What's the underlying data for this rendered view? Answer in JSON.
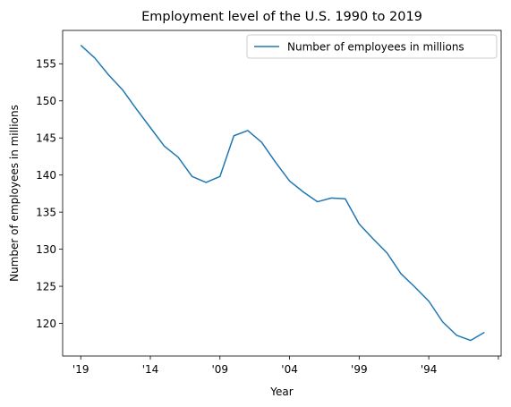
{
  "chart_data": {
    "type": "line",
    "title": "Employment level of the U.S. 1990 to 2019",
    "xlabel": "Year",
    "ylabel": "Number of employees in millions",
    "x": [
      2019,
      2018,
      2017,
      2016,
      2015,
      2014,
      2013,
      2012,
      2011,
      2010,
      2009,
      2008,
      2007,
      2006,
      2005,
      2004,
      2003,
      2002,
      2001,
      2000,
      1999,
      1998,
      1997,
      1996,
      1995,
      1994,
      1993,
      1992,
      1991,
      1990
    ],
    "x_tick_values": [
      2019,
      2014,
      2009,
      2004,
      1999,
      1994,
      1989
    ],
    "x_tick_labels": [
      "'19",
      "'14",
      "'09",
      "'04",
      "'99",
      "'94",
      ""
    ],
    "xlim": [
      2020.3,
      1988.8
    ],
    "ylim": [
      115.6,
      159.5
    ],
    "y_ticks": [
      120,
      125,
      130,
      135,
      140,
      145,
      150,
      155
    ],
    "series": [
      {
        "name": "Number of employees in millions",
        "color": "#1f77b4",
        "values": [
          157.5,
          155.8,
          153.5,
          151.5,
          148.9,
          146.4,
          143.9,
          142.4,
          139.8,
          139.0,
          139.8,
          145.3,
          146.0,
          144.4,
          141.7,
          139.2,
          137.7,
          136.4,
          136.9,
          136.8,
          133.4,
          131.4,
          129.5,
          126.7,
          124.9,
          123.0,
          120.2,
          118.4,
          117.7,
          118.8
        ]
      }
    ],
    "legend_position": "top-right",
    "grid": false
  }
}
